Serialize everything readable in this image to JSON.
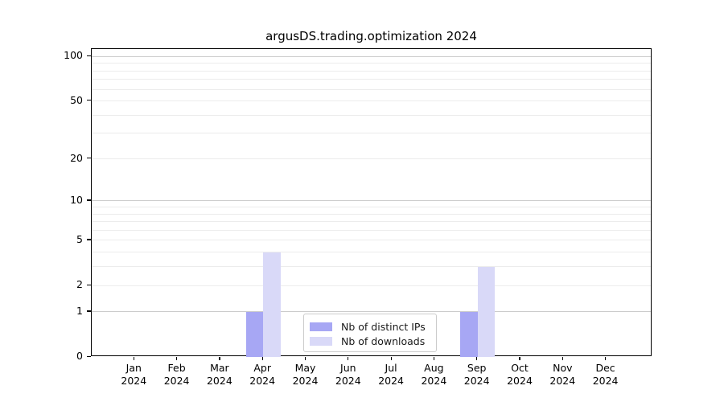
{
  "chart_data": {
    "type": "bar",
    "title": "argusDS.trading.optimization 2024",
    "categories": [
      "Jan",
      "Feb",
      "Mar",
      "Apr",
      "May",
      "Jun",
      "Jul",
      "Aug",
      "Sep",
      "Oct",
      "Nov",
      "Dec"
    ],
    "category_year": "2024",
    "series": [
      {
        "name": "Nb of distinct IPs",
        "color": "#a7a7f4",
        "values": [
          0,
          0,
          0,
          1,
          0,
          0,
          0,
          0,
          1,
          0,
          0,
          0
        ]
      },
      {
        "name": "Nb of downloads",
        "color": "#d9d9f8",
        "values": [
          0,
          0,
          0,
          4,
          0,
          0,
          0,
          0,
          3,
          0,
          0,
          0
        ]
      }
    ],
    "xlabel": "",
    "ylabel": "",
    "yscale": "log1p",
    "ylim": [
      0,
      112.4
    ],
    "y_ticks": [
      0,
      1,
      2,
      5,
      10,
      20,
      50,
      100
    ],
    "grid_major_values": [
      1,
      10,
      100
    ],
    "grid_minor_values": [
      2,
      3,
      4,
      5,
      6,
      7,
      8,
      9,
      20,
      30,
      40,
      50,
      60,
      70,
      80,
      90
    ],
    "legend_position": "lower center",
    "colors": {
      "grid_major": "#cccccc",
      "grid_minor": "#ececec",
      "spine": "#000000",
      "background": "#ffffff"
    }
  }
}
